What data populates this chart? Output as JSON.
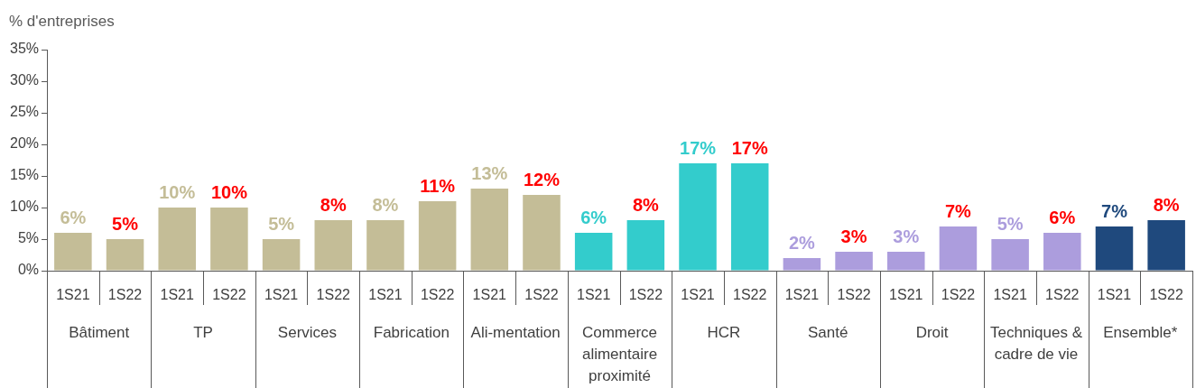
{
  "chart_data": {
    "type": "bar",
    "ylabel": "% d'entreprises",
    "categories": [
      "Bâtiment",
      "TP",
      "Services",
      "Fabrication",
      "Ali-mentation",
      "Commerce alimentaire proximité",
      "HCR",
      "Santé",
      "Droit",
      "Techniques & cadre de vie",
      "Ensemble*"
    ],
    "series": [
      {
        "name": "1S21",
        "values": [
          6,
          10,
          5,
          8,
          13,
          6,
          17,
          2,
          3,
          5,
          7
        ],
        "colors": [
          "#c4bd97",
          "#c4bd97",
          "#c4bd97",
          "#c4bd97",
          "#c4bd97",
          "#33cccc",
          "#33cccc",
          "#ac9ddd",
          "#ac9ddd",
          "#ac9ddd",
          "#1f497d"
        ],
        "value_labels": [
          "6%",
          "10%",
          "5%",
          "8%",
          "13%",
          "6%",
          "17%",
          "2%",
          "3%",
          "5%",
          "7%"
        ]
      },
      {
        "name": "1S22",
        "values": [
          5,
          10,
          8,
          11,
          12,
          8,
          17,
          3,
          7,
          6,
          8
        ],
        "colors": [
          "#c4bd97",
          "#c4bd97",
          "#c4bd97",
          "#c4bd97",
          "#c4bd97",
          "#33cccc",
          "#33cccc",
          "#ac9ddd",
          "#ac9ddd",
          "#ac9ddd",
          "#1f497d"
        ],
        "value_labels": [
          "5%",
          "10%",
          "8%",
          "11%",
          "12%",
          "8%",
          "17%",
          "3%",
          "7%",
          "6%",
          "8%"
        ]
      }
    ],
    "ylim": [
      0,
      35
    ],
    "yticks": [
      {
        "value": 0,
        "label": "0%"
      },
      {
        "value": 5,
        "label": "5%"
      },
      {
        "value": 10,
        "label": "10%"
      },
      {
        "value": 15,
        "label": "15%"
      },
      {
        "value": 20,
        "label": "20%"
      },
      {
        "value": 25,
        "label": "25%"
      },
      {
        "value": 30,
        "label": "30%"
      },
      {
        "value": 35,
        "label": "35%"
      }
    ],
    "grid": false,
    "legend": false
  }
}
